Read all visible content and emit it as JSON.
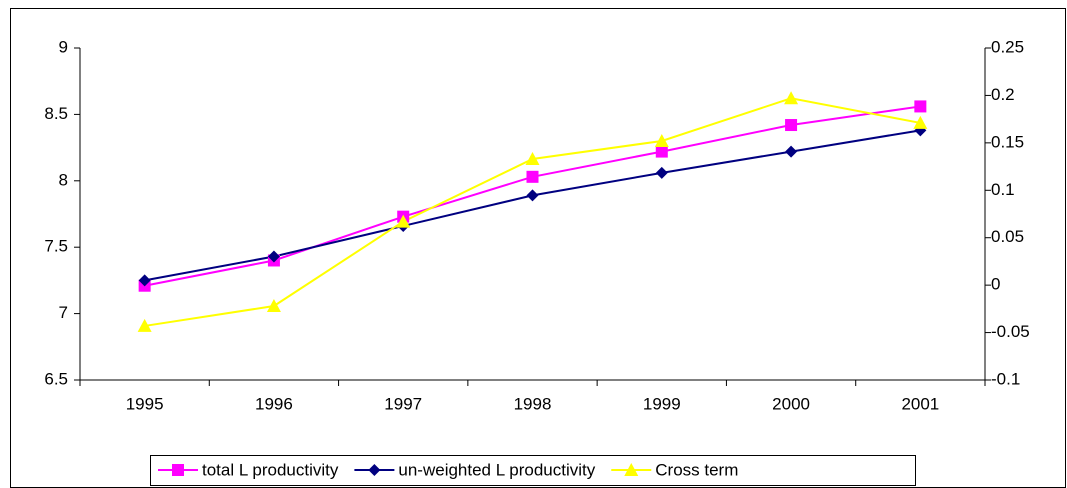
{
  "chart_data": {
    "type": "line",
    "categories": [
      "1995",
      "1996",
      "1997",
      "1998",
      "1999",
      "2000",
      "2001"
    ],
    "series": [
      {
        "name": "total L productivity",
        "color": "#ff00ff",
        "marker": "square",
        "values": [
          7.21,
          7.4,
          7.73,
          8.03,
          8.22,
          8.42,
          8.56
        ]
      },
      {
        "name": "un-weighted L productivity",
        "color": "#000080",
        "marker": "diamond",
        "values": [
          7.25,
          7.43,
          7.66,
          7.89,
          8.06,
          8.22,
          8.38
        ]
      },
      {
        "name": "Cross term",
        "color": "#ffff00",
        "marker": "triangle",
        "axis": "y2",
        "values": [
          -0.043,
          -0.022,
          0.067,
          0.133,
          0.152,
          0.197,
          0.171
        ]
      }
    ],
    "ylim": [
      6.5,
      9
    ],
    "yticks": [
      6.5,
      7,
      7.5,
      8,
      8.5,
      9
    ],
    "y2lim": [
      -0.1,
      0.25
    ],
    "y2ticks": [
      -0.1,
      -0.05,
      0,
      0.05,
      0.1,
      0.15,
      0.2,
      0.25
    ],
    "legend": "bottom"
  }
}
